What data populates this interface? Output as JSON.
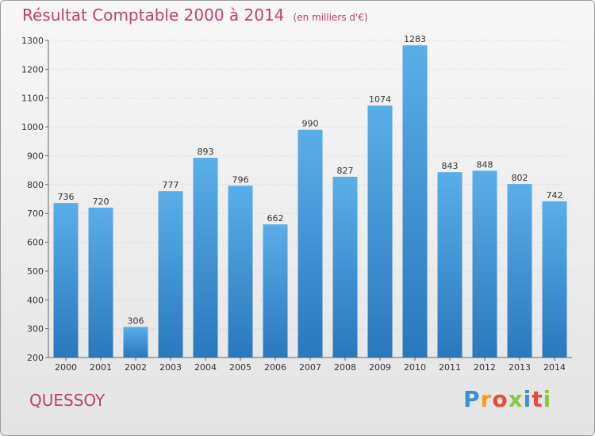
{
  "chart_data": {
    "type": "bar",
    "title": "Résultat Comptable 2000 à 2014",
    "subtitle": "(en milliers d'€)",
    "xlabel": "",
    "ylabel": "",
    "categories": [
      "2000",
      "2001",
      "2002",
      "2003",
      "2004",
      "2005",
      "2006",
      "2007",
      "2008",
      "2009",
      "2010",
      "2011",
      "2012",
      "2013",
      "2014"
    ],
    "values": [
      736,
      720,
      306,
      777,
      893,
      796,
      662,
      990,
      827,
      1074,
      1283,
      843,
      848,
      802,
      742
    ],
    "ylim": [
      200,
      1300
    ],
    "yticks": [
      200,
      300,
      400,
      500,
      600,
      700,
      800,
      900,
      1000,
      1100,
      1200,
      1300
    ],
    "grid": true,
    "legend": "none"
  },
  "footer": {
    "city": "QUESSOY",
    "logo_letters": [
      "P",
      "r",
      "o",
      "x",
      "i",
      "t",
      "i"
    ]
  },
  "colors": {
    "bar_top": "#5aaee8",
    "bar_bottom": "#2a78bd",
    "title": "#c0406a",
    "city": "#c0406a",
    "logo": [
      "#3a8fd6",
      "#f0a020",
      "#e84a3a",
      "#8cc83c",
      "#3a8fd6",
      "#e84a3a",
      "#8cc83c"
    ]
  }
}
